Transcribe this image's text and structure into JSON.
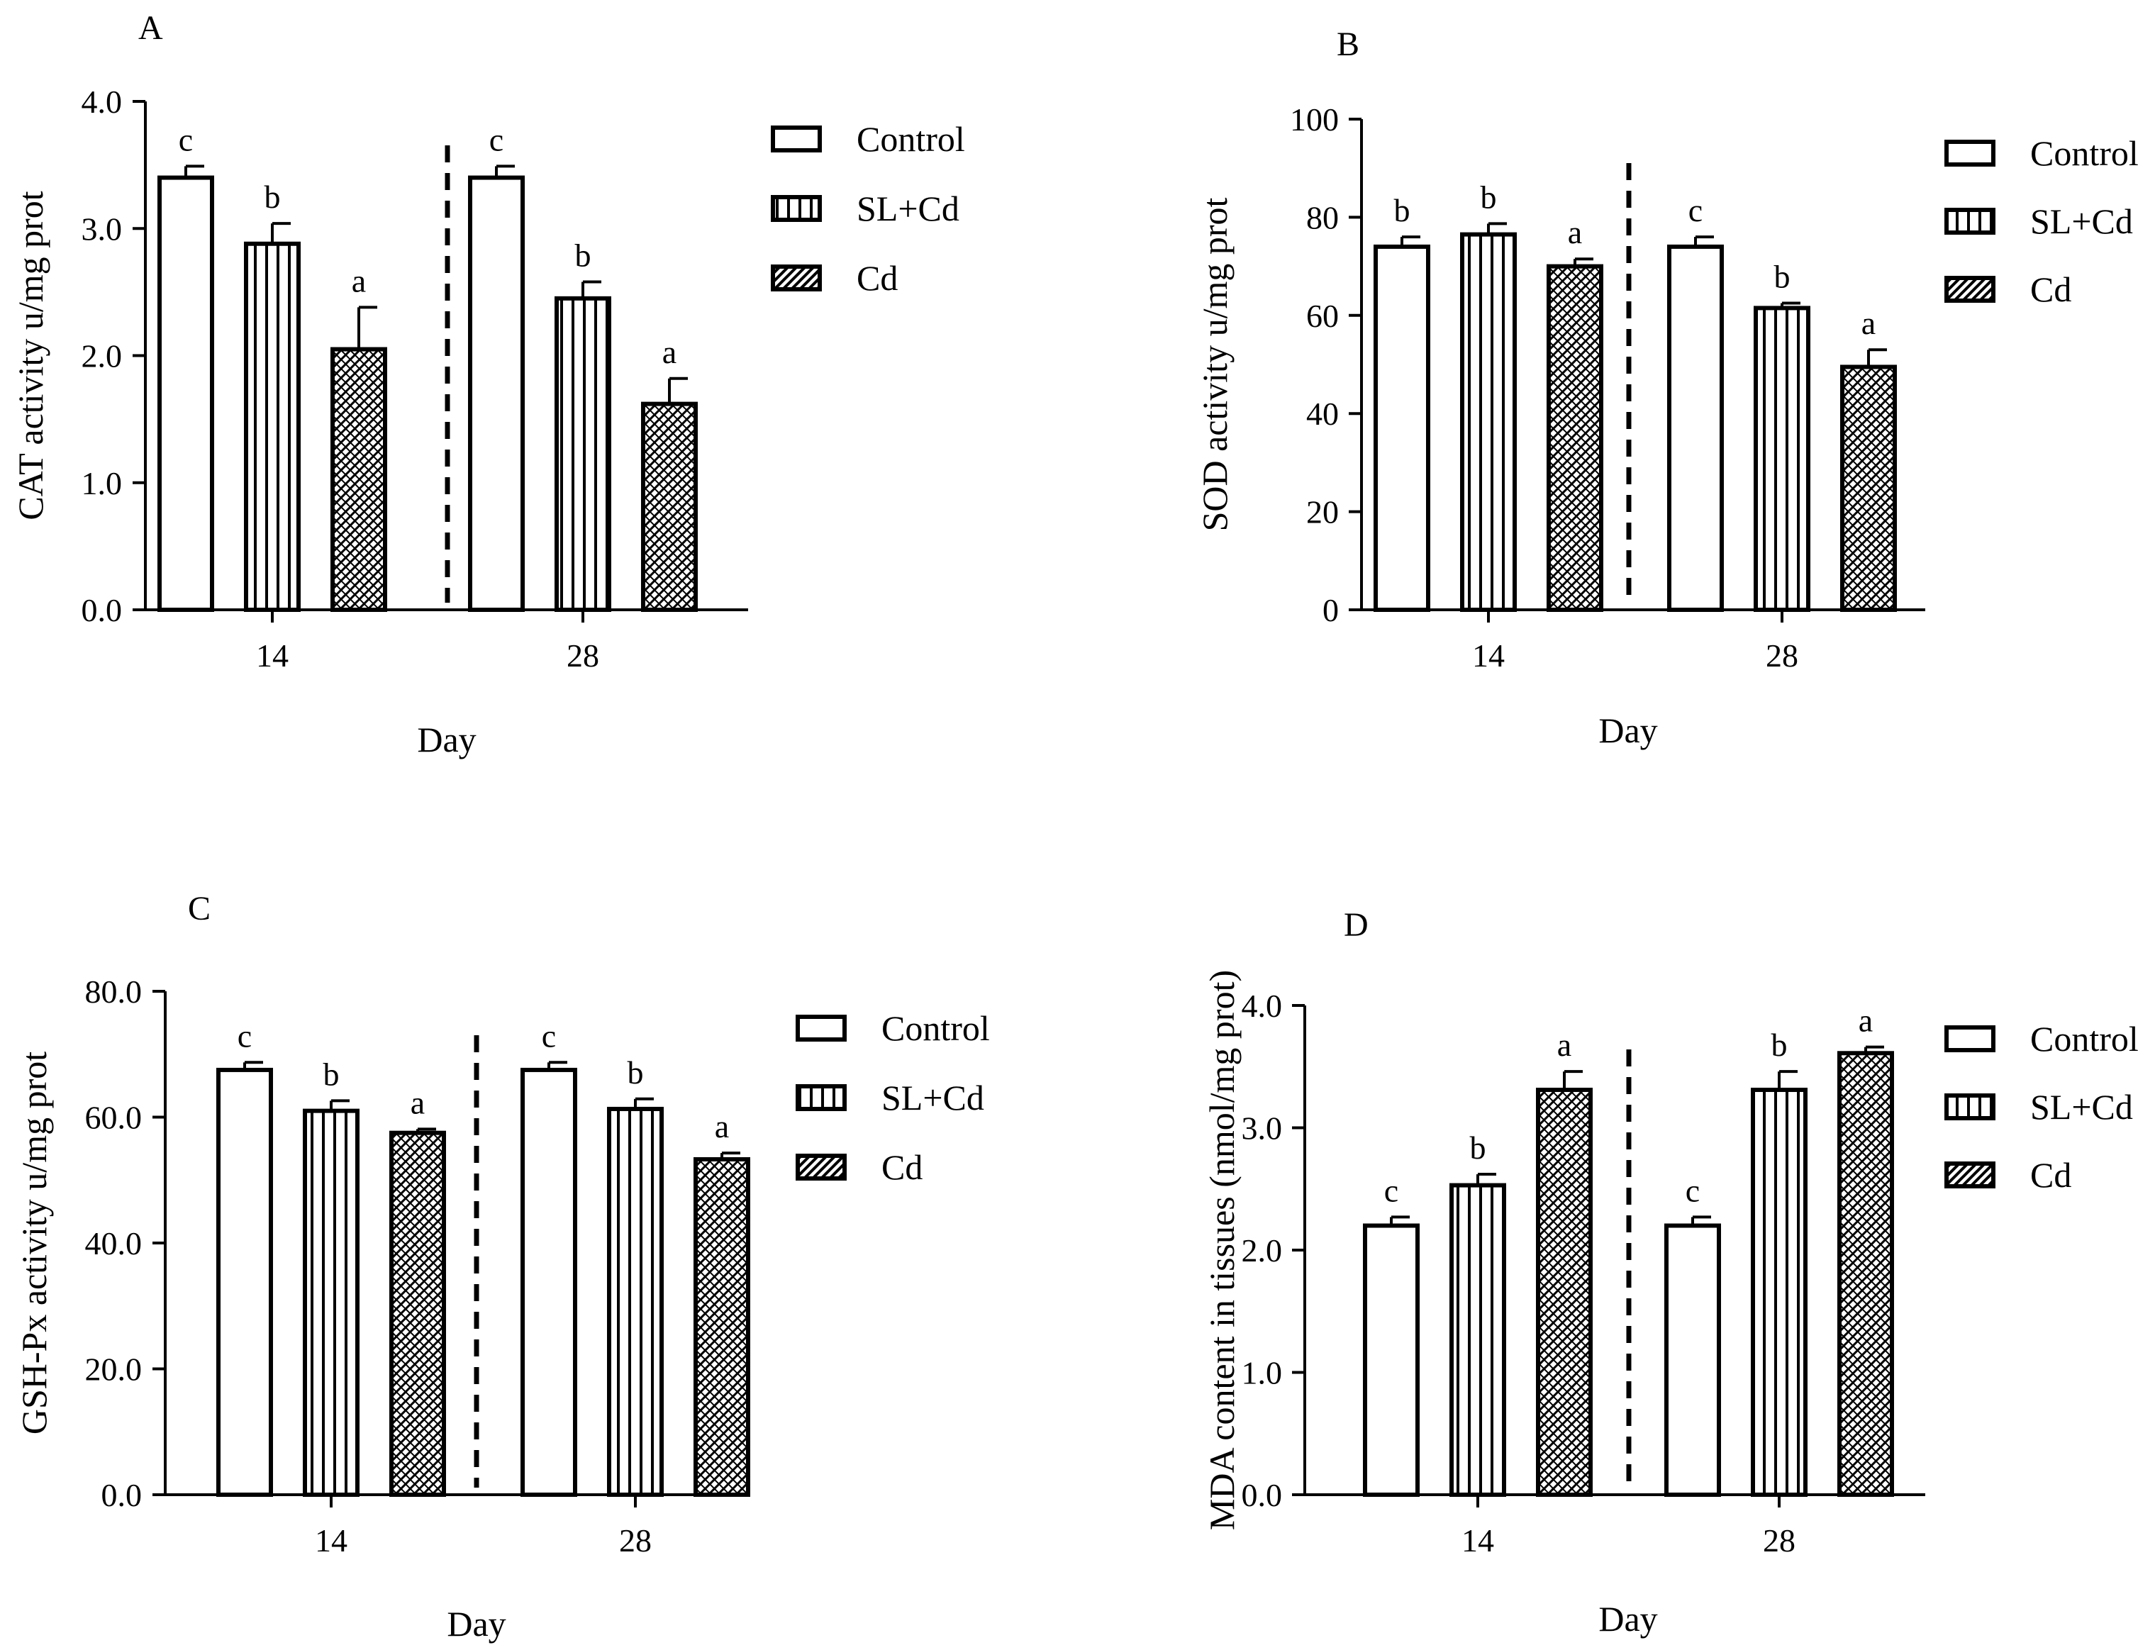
{
  "figure": {
    "legend": [
      "Control",
      "SL+Cd",
      "Cd"
    ],
    "categories": [
      "14",
      "28"
    ],
    "xlabel": "Day"
  },
  "chart_data": [
    {
      "type": "bar",
      "panel": "A",
      "title": "",
      "xlabel": "Day",
      "ylabel": "CAT activity u/mg prot",
      "ylim": [
        0,
        4.0
      ],
      "yticks": [
        "0.0",
        "1.0",
        "2.0",
        "3.0",
        "4.0"
      ],
      "categories": [
        "14",
        "28"
      ],
      "series": [
        {
          "name": "Control",
          "values": [
            3.4,
            3.4
          ],
          "errors": [
            0.09,
            0.09
          ],
          "letters": [
            "c",
            "c"
          ]
        },
        {
          "name": "SL+Cd",
          "values": [
            2.88,
            2.45
          ],
          "errors": [
            0.16,
            0.13
          ],
          "letters": [
            "b",
            "b"
          ]
        },
        {
          "name": "Cd",
          "values": [
            2.05,
            1.62
          ],
          "errors": [
            0.33,
            0.2
          ],
          "letters": [
            "a",
            "a"
          ]
        }
      ],
      "legend": [
        "Control",
        "SL+Cd",
        "Cd"
      ]
    },
    {
      "type": "bar",
      "panel": "B",
      "title": "",
      "xlabel": "Day",
      "ylabel": "SOD activity u/mg prot",
      "ylim": [
        0,
        100
      ],
      "yticks": [
        "0",
        "20",
        "40",
        "60",
        "80",
        "100"
      ],
      "categories": [
        "14",
        "28"
      ],
      "series": [
        {
          "name": "Control",
          "values": [
            74,
            74
          ],
          "errors": [
            2.0,
            2.0
          ],
          "letters": [
            "b",
            "c"
          ]
        },
        {
          "name": "SL+Cd",
          "values": [
            76.5,
            61.5
          ],
          "errors": [
            2.2,
            1.0
          ],
          "letters": [
            "b",
            "b"
          ]
        },
        {
          "name": "Cd",
          "values": [
            70,
            49.5
          ],
          "errors": [
            1.5,
            3.5
          ],
          "letters": [
            "a",
            "a"
          ]
        }
      ],
      "legend": [
        "Control",
        "SL+Cd",
        "Cd"
      ]
    },
    {
      "type": "bar",
      "panel": "C",
      "title": "",
      "xlabel": "Day",
      "ylabel": "GSH-Px activity u/mg prot",
      "ylim": [
        0,
        80.0
      ],
      "yticks": [
        "0.0",
        "20.0",
        "40.0",
        "60.0",
        "80.0"
      ],
      "categories": [
        "14",
        "28"
      ],
      "series": [
        {
          "name": "Control",
          "values": [
            67.5,
            67.5
          ],
          "errors": [
            1.2,
            1.2
          ],
          "letters": [
            "c",
            "c"
          ]
        },
        {
          "name": "SL+Cd",
          "values": [
            61,
            61.3
          ],
          "errors": [
            1.6,
            1.6
          ],
          "letters": [
            "b",
            "b"
          ]
        },
        {
          "name": "Cd",
          "values": [
            57.5,
            53.3
          ],
          "errors": [
            0.6,
            1.0
          ],
          "letters": [
            "a",
            "a"
          ]
        }
      ],
      "legend": [
        "Control",
        "SL+Cd",
        "Cd"
      ]
    },
    {
      "type": "bar",
      "panel": "D",
      "title": "",
      "xlabel": "Day",
      "ylabel": "MDA content in tissues (nmol/mg prot)",
      "ylim": [
        0,
        4.0
      ],
      "yticks": [
        "0.0",
        "1.0",
        "2.0",
        "3.0",
        "4.0"
      ],
      "categories": [
        "14",
        "28"
      ],
      "series": [
        {
          "name": "Control",
          "values": [
            2.2,
            2.2
          ],
          "errors": [
            0.07,
            0.07
          ],
          "letters": [
            "c",
            "c"
          ]
        },
        {
          "name": "SL+Cd",
          "values": [
            2.53,
            3.31
          ],
          "errors": [
            0.09,
            0.15
          ],
          "letters": [
            "b",
            "b"
          ]
        },
        {
          "name": "Cd",
          "values": [
            3.31,
            3.61
          ],
          "errors": [
            0.15,
            0.05
          ],
          "letters": [
            "a",
            "a"
          ]
        }
      ],
      "legend": [
        "Control",
        "SL+Cd",
        "Cd"
      ]
    }
  ]
}
